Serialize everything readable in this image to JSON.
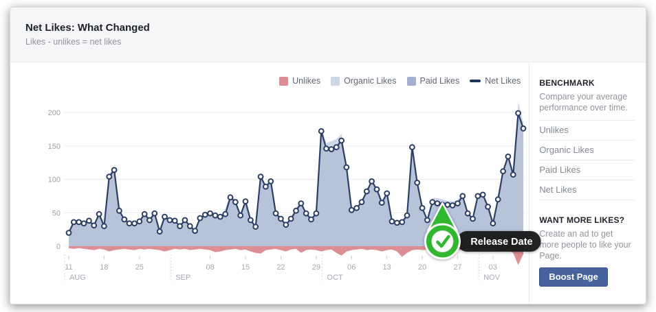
{
  "header": {
    "title": "Net Likes: What Changed",
    "subtitle": "Likes - unlikes = net likes"
  },
  "legend": [
    {
      "label": "Unlikes",
      "color": "#dd8e95",
      "swatch": "square"
    },
    {
      "label": "Organic Likes",
      "color": "#cdd7e7",
      "swatch": "square"
    },
    {
      "label": "Paid Likes",
      "color": "#a2b0cc",
      "swatch": "square"
    },
    {
      "label": "Net Likes",
      "color": "#22335a",
      "swatch": "line"
    }
  ],
  "sidebar": {
    "benchmark": {
      "heading": "BENCHMARK",
      "description": "Compare your average performance over time.",
      "items": [
        "Unlikes",
        "Organic Likes",
        "Paid Likes",
        "Net Likes"
      ]
    },
    "promo": {
      "heading": "WANT MORE LIKES?",
      "description": "Create an ad to get more people to like your Page.",
      "button_label": "Boost Page"
    }
  },
  "annotation": {
    "label": "Release Date",
    "day_index": 74
  },
  "chart_data": {
    "type": "area",
    "title": "Net Likes: What Changed",
    "x_start": "Aug 11",
    "x_end": "Nov 9",
    "grid": true,
    "legend_position": "top-right",
    "y_ticks": [
      0,
      50,
      100,
      150,
      200
    ],
    "ylim": [
      -35,
      220
    ],
    "x_tick_labels": [
      {
        "day": 0,
        "label": "11"
      },
      {
        "day": 7,
        "label": "18"
      },
      {
        "day": 14,
        "label": "25"
      },
      {
        "day": 28,
        "label": "08"
      },
      {
        "day": 35,
        "label": "15"
      },
      {
        "day": 42,
        "label": "22"
      },
      {
        "day": 49,
        "label": "29"
      },
      {
        "day": 56,
        "label": "06"
      },
      {
        "day": 63,
        "label": "13"
      },
      {
        "day": 70,
        "label": "20"
      },
      {
        "day": 77,
        "label": "27"
      },
      {
        "day": 84,
        "label": "03"
      }
    ],
    "month_dividers": [
      {
        "day": 0,
        "label": "AUG"
      },
      {
        "day": 21,
        "label": "SEP"
      },
      {
        "day": 51,
        "label": "OCT"
      },
      {
        "day": 82,
        "label": "NOV"
      }
    ],
    "series": [
      {
        "name": "Unlikes",
        "color": "#dd8e95",
        "render": "area-below-zero",
        "values": [
          -3,
          -4,
          -3,
          -4,
          -5,
          -6,
          -4,
          -5,
          -8,
          -6,
          -5,
          -4,
          -5,
          -6,
          -4,
          -5,
          -4,
          -5,
          -6,
          -8,
          -6,
          -4,
          -5,
          -4,
          -6,
          -5,
          -4,
          -5,
          -6,
          -9,
          -8,
          -6,
          -5,
          -4,
          -6,
          -5,
          -8,
          -10,
          -11,
          -6,
          -5,
          -4,
          -6,
          -8,
          -5,
          -4,
          -10,
          -6,
          -5,
          -6,
          -8,
          -6,
          -5,
          -10,
          -14,
          -8,
          -6,
          -5,
          -4,
          -6,
          -5,
          -6,
          -8,
          -6,
          -5,
          -8,
          -16,
          -10,
          -6,
          -5,
          -6,
          -5,
          -6,
          -8,
          -6,
          -5,
          -4,
          -6,
          -5,
          -4,
          -5,
          -6,
          -5,
          -4,
          -6,
          -5,
          -8,
          -6,
          -10,
          -28,
          -12
        ]
      },
      {
        "name": "Organic Likes",
        "color": "#cdd7e7",
        "render": "area",
        "values": [
          20,
          36,
          36,
          34,
          38,
          31,
          48,
          30,
          108,
          118,
          53,
          40,
          34,
          34,
          37,
          48,
          39,
          49,
          22,
          44,
          39,
          38,
          30,
          39,
          30,
          23,
          42,
          47,
          49,
          46,
          44,
          56,
          79,
          70,
          46,
          67,
          39,
          29,
          110,
          89,
          97,
          49,
          41,
          32,
          41,
          59,
          64,
          49,
          40,
          49,
          177,
          154,
          157,
          160,
          168,
          124,
          54,
          57,
          66,
          82,
          103,
          85,
          65,
          79,
          37,
          35,
          36,
          46,
          158,
          101,
          57,
          39,
          72,
          72,
          70,
          68,
          67,
          69,
          81,
          49,
          41,
          75,
          77,
          59,
          34,
          70,
          116,
          139,
          111,
          215,
          186
        ]
      },
      {
        "name": "Paid Likes",
        "color": "#b7c3d9",
        "render": "area",
        "values": [
          20,
          36,
          36,
          34,
          38,
          31,
          48,
          30,
          104,
          114,
          53,
          40,
          34,
          34,
          37,
          48,
          39,
          49,
          22,
          44,
          39,
          38,
          30,
          39,
          30,
          23,
          42,
          47,
          49,
          46,
          44,
          48,
          73,
          66,
          46,
          67,
          39,
          29,
          104,
          89,
          97,
          49,
          41,
          32,
          41,
          53,
          64,
          49,
          40,
          49,
          172,
          146,
          145,
          148,
          158,
          118,
          54,
          57,
          66,
          82,
          97,
          85,
          65,
          79,
          37,
          35,
          36,
          46,
          148,
          95,
          57,
          39,
          66,
          64,
          62,
          62,
          61,
          64,
          75,
          49,
          41,
          75,
          77,
          59,
          34,
          70,
          112,
          134,
          107,
          199,
          176
        ]
      },
      {
        "name": "Net Likes",
        "color": "#2c3e63",
        "render": "line-markers",
        "values": [
          20,
          36,
          36,
          34,
          38,
          31,
          48,
          30,
          104,
          114,
          53,
          40,
          34,
          34,
          37,
          48,
          39,
          49,
          22,
          44,
          39,
          38,
          30,
          39,
          30,
          23,
          42,
          47,
          49,
          46,
          44,
          48,
          73,
          66,
          46,
          67,
          39,
          29,
          104,
          89,
          97,
          49,
          41,
          32,
          41,
          53,
          64,
          49,
          40,
          49,
          172,
          146,
          145,
          148,
          158,
          118,
          54,
          57,
          66,
          82,
          97,
          85,
          65,
          79,
          37,
          35,
          36,
          46,
          148,
          95,
          57,
          39,
          66,
          64,
          62,
          62,
          61,
          64,
          75,
          49,
          41,
          75,
          77,
          59,
          34,
          70,
          112,
          134,
          107,
          199,
          176
        ]
      }
    ]
  }
}
